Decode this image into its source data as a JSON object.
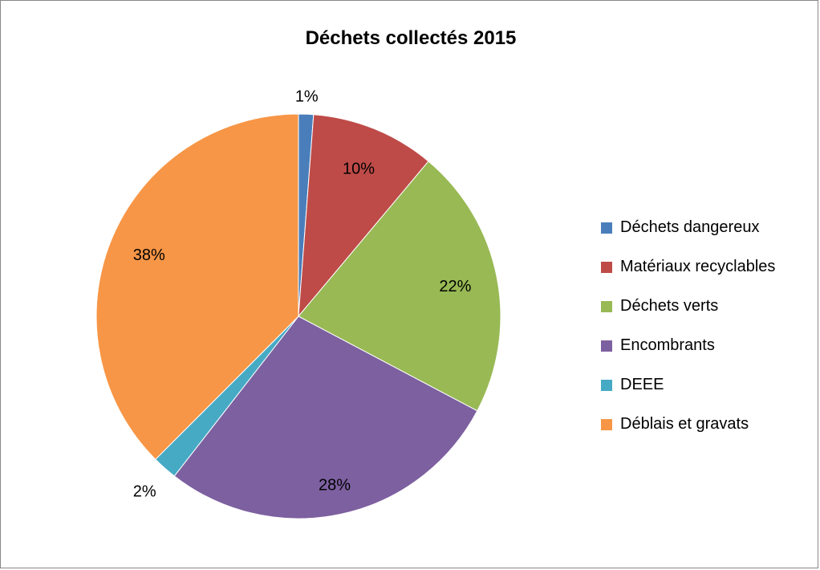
{
  "chart_data": {
    "type": "pie",
    "title": "Déchets collectés 2015",
    "categories": [
      "Déchets dangereux",
      "Matériaux recyclables",
      "Déchets verts",
      "Encombrants",
      "DEEE",
      "Déblais et gravats"
    ],
    "values": [
      1.2,
      10,
      21.8,
      28,
      2,
      37.8
    ],
    "data_labels": [
      "1%",
      "10%",
      "22%",
      "28%",
      "2%",
      "38%"
    ],
    "colors": [
      "#4a7ebb",
      "#be4b48",
      "#98b954",
      "#7d60a0",
      "#46aac5",
      "#f79646"
    ],
    "legend_position": "right",
    "start_angle_deg": 0,
    "direction": "clockwise"
  }
}
